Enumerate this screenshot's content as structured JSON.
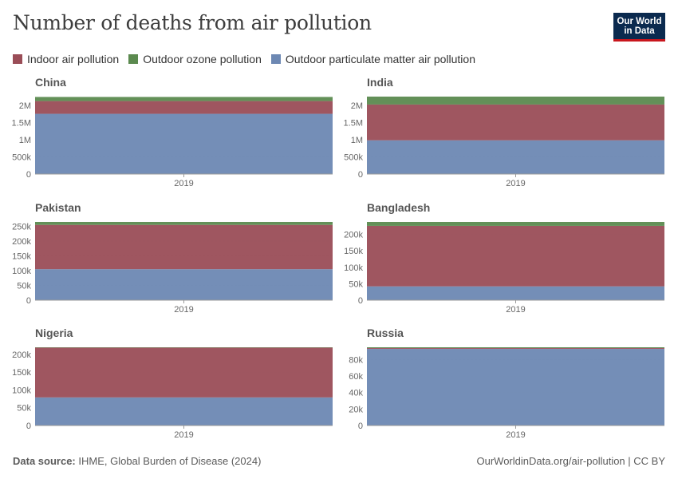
{
  "title": "Number of deaths from air pollution",
  "logo": {
    "line1": "Our World",
    "line2": "in Data"
  },
  "legend": [
    {
      "label": "Indoor air pollution",
      "color": "#9a4d57"
    },
    {
      "label": "Outdoor ozone pollution",
      "color": "#5b8a4f"
    },
    {
      "label": "Outdoor particulate matter air pollution",
      "color": "#6d88b3"
    }
  ],
  "footer": {
    "source_label": "Data source:",
    "source_text": "IHME, Global Burden of Disease (2024)",
    "right_text": "OurWorldinData.org/air-pollution | CC BY"
  },
  "chart_data": [
    {
      "type": "area",
      "title": "China",
      "x": [
        "2019"
      ],
      "yticks": [
        0,
        500000,
        1000000,
        1500000,
        2000000
      ],
      "ytick_labels": [
        "0",
        "500k",
        "1M",
        "1.5M",
        "2M"
      ],
      "ylim": [
        0,
        2250000
      ],
      "series": [
        {
          "name": "Outdoor particulate matter air pollution",
          "values": [
            1750000
          ],
          "color": "#6d88b3"
        },
        {
          "name": "Indoor air pollution",
          "values": [
            370000
          ],
          "color": "#9a4d57"
        },
        {
          "name": "Outdoor ozone pollution",
          "values": [
            120000
          ],
          "color": "#5b8a4f"
        }
      ]
    },
    {
      "type": "area",
      "title": "India",
      "x": [
        "2019"
      ],
      "yticks": [
        0,
        500000,
        1000000,
        1500000,
        2000000
      ],
      "ytick_labels": [
        "0",
        "500k",
        "1M",
        "1.5M",
        "2M"
      ],
      "ylim": [
        0,
        2250000
      ],
      "series": [
        {
          "name": "Outdoor particulate matter air pollution",
          "values": [
            980000
          ],
          "color": "#6d88b3"
        },
        {
          "name": "Indoor air pollution",
          "values": [
            1040000
          ],
          "color": "#9a4d57"
        },
        {
          "name": "Outdoor ozone pollution",
          "values": [
            230000
          ],
          "color": "#5b8a4f"
        }
      ]
    },
    {
      "type": "area",
      "title": "Pakistan",
      "x": [
        "2019"
      ],
      "yticks": [
        0,
        50000,
        100000,
        150000,
        200000,
        250000
      ],
      "ytick_labels": [
        "0",
        "50k",
        "100k",
        "150k",
        "200k",
        "250k"
      ],
      "ylim": [
        0,
        265000
      ],
      "series": [
        {
          "name": "Outdoor particulate matter air pollution",
          "values": [
            105000
          ],
          "color": "#6d88b3"
        },
        {
          "name": "Indoor air pollution",
          "values": [
            150000
          ],
          "color": "#9a4d57"
        },
        {
          "name": "Outdoor ozone pollution",
          "values": [
            10000
          ],
          "color": "#5b8a4f"
        }
      ]
    },
    {
      "type": "area",
      "title": "Bangladesh",
      "x": [
        "2019"
      ],
      "yticks": [
        0,
        50000,
        100000,
        150000,
        200000
      ],
      "ytick_labels": [
        "0",
        "50k",
        "100k",
        "150k",
        "200k"
      ],
      "ylim": [
        0,
        238000
      ],
      "series": [
        {
          "name": "Outdoor particulate matter air pollution",
          "values": [
            42000
          ],
          "color": "#6d88b3"
        },
        {
          "name": "Indoor air pollution",
          "values": [
            184000
          ],
          "color": "#9a4d57"
        },
        {
          "name": "Outdoor ozone pollution",
          "values": [
            12000
          ],
          "color": "#5b8a4f"
        }
      ]
    },
    {
      "type": "area",
      "title": "Nigeria",
      "x": [
        "2019"
      ],
      "yticks": [
        0,
        50000,
        100000,
        150000,
        200000
      ],
      "ytick_labels": [
        "0",
        "50k",
        "100k",
        "150k",
        "200k"
      ],
      "ylim": [
        0,
        220000
      ],
      "series": [
        {
          "name": "Outdoor particulate matter air pollution",
          "values": [
            79000
          ],
          "color": "#6d88b3"
        },
        {
          "name": "Indoor air pollution",
          "values": [
            140000
          ],
          "color": "#9a4d57"
        },
        {
          "name": "Outdoor ozone pollution",
          "values": [
            1000
          ],
          "color": "#5b8a4f"
        }
      ]
    },
    {
      "type": "area",
      "title": "Russia",
      "x": [
        "2019"
      ],
      "yticks": [
        0,
        20000,
        40000,
        60000,
        80000
      ],
      "ytick_labels": [
        "0",
        "20k",
        "40k",
        "60k",
        "80k"
      ],
      "ylim": [
        0,
        95000
      ],
      "series": [
        {
          "name": "Outdoor particulate matter air pollution",
          "values": [
            93000
          ],
          "color": "#6d88b3"
        },
        {
          "name": "Indoor air pollution",
          "values": [
            1000
          ],
          "color": "#9a4d57"
        },
        {
          "name": "Outdoor ozone pollution",
          "values": [
            1000
          ],
          "color": "#5b8a4f"
        }
      ]
    }
  ]
}
